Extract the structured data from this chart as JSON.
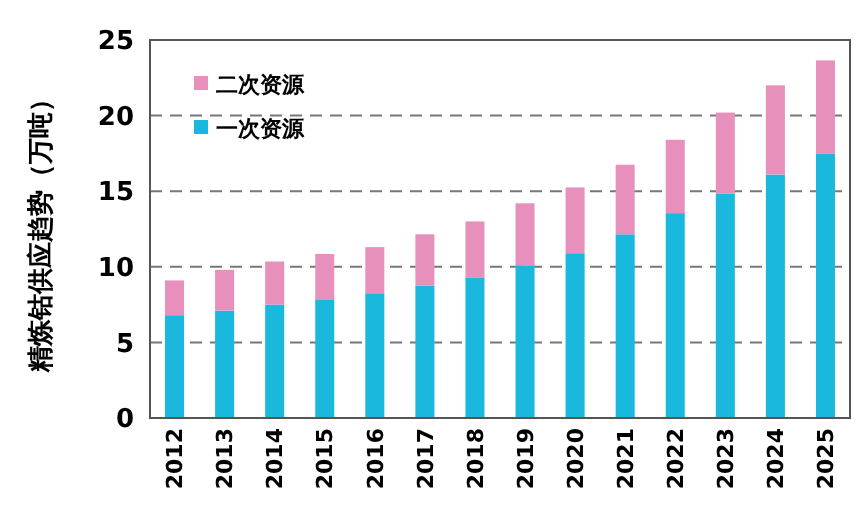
{
  "chart_data": {
    "type": "bar",
    "stacked": true,
    "ylabel": "精炼钴供应趋势（万吨）",
    "categories": [
      "2012",
      "2013",
      "2014",
      "2015",
      "2016",
      "2017",
      "2018",
      "2019",
      "2020",
      "2021",
      "2022",
      "2023",
      "2024",
      "2025"
    ],
    "series": [
      {
        "name": "一次资源",
        "color": "#1ab8dc",
        "values": [
          6.8,
          7.1,
          7.5,
          7.85,
          8.25,
          8.75,
          9.3,
          10.1,
          10.9,
          12.15,
          13.55,
          14.85,
          16.1,
          17.5
        ]
      },
      {
        "name": "二次资源",
        "color": "#e890bc",
        "values": [
          2.3,
          2.7,
          2.85,
          3.0,
          3.05,
          3.4,
          3.7,
          4.1,
          4.35,
          4.6,
          4.85,
          5.35,
          5.9,
          6.15
        ]
      }
    ],
    "ylim": [
      0,
      25
    ],
    "yticks": [
      0,
      5,
      10,
      15,
      20,
      25
    ],
    "grid": "y",
    "legend": "top left"
  }
}
